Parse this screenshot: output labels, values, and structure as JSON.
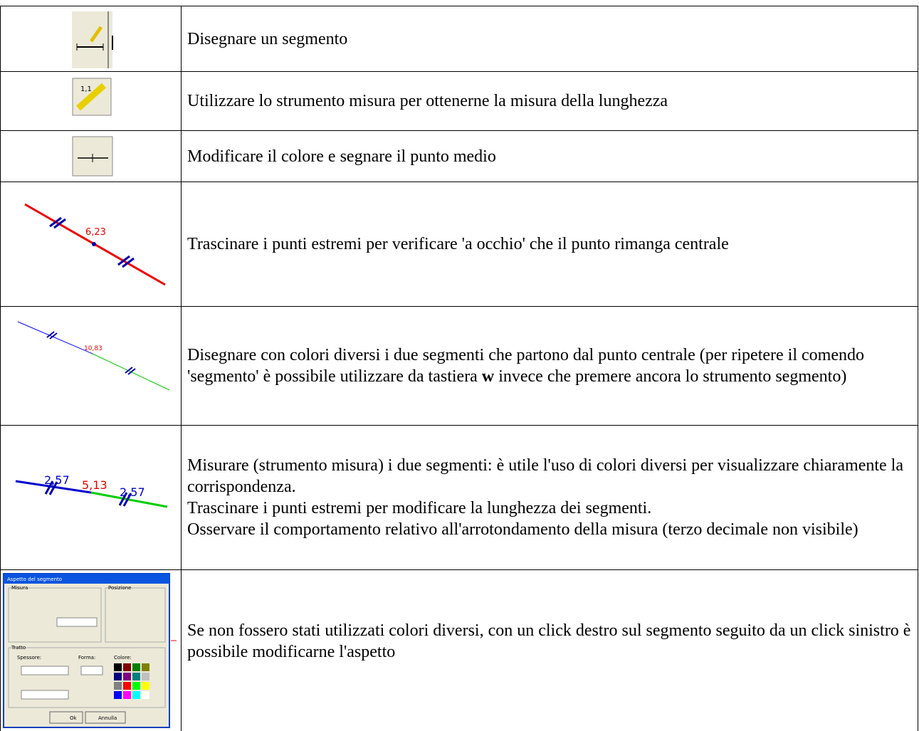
{
  "rows": [
    {
      "text": "Disegnare un segmento"
    },
    {
      "icon_label": "1,1",
      "text": "Utilizzare lo strumento misura per ottenerne la misura della lunghezza"
    },
    {
      "text": "Modificare il colore e segnare il punto medio"
    },
    {
      "icon_labels": [
        "6,23"
      ],
      "text": "Trascinare i punti estremi per verificare 'a occhio' che il punto rimanga centrale"
    },
    {
      "icon_labels": [
        "10,83"
      ],
      "text": [
        "Disegnare con colori diversi i due segmenti che partono dal punto centrale (per ripetere il comendo 'segmento' è possibile utilizzare da tastiera ",
        "w",
        " invece che premere ancora lo strumento segmento)"
      ]
    },
    {
      "icon_labels": [
        "2,57",
        "5,13",
        "2,57"
      ],
      "text": [
        "Misurare (strumento misura) i due segmenti: è utile l'uso di colori diversi per visualizzare chiaramente la corrispondenza.",
        "Trascinare i punti estremi per modificare la lunghezza dei segmenti.",
        "Osservare il comportamento relativo all'arrotondamento della misura (terzo decimale non visibile)"
      ]
    },
    {
      "dialog": {
        "title": "Aspetto del segmento",
        "groups": [
          "Misura",
          "Posizione",
          "Tratto"
        ],
        "fields": [
          "Spessore:",
          "Forma:",
          "Colore:"
        ],
        "buttons": [
          "Ok",
          "Annulla"
        ]
      },
      "text": "Se non fossero stati utilizzati colori diversi, con un click destro sul segmento seguito da un click sinistro è possibile modificarne l'aspetto"
    }
  ]
}
